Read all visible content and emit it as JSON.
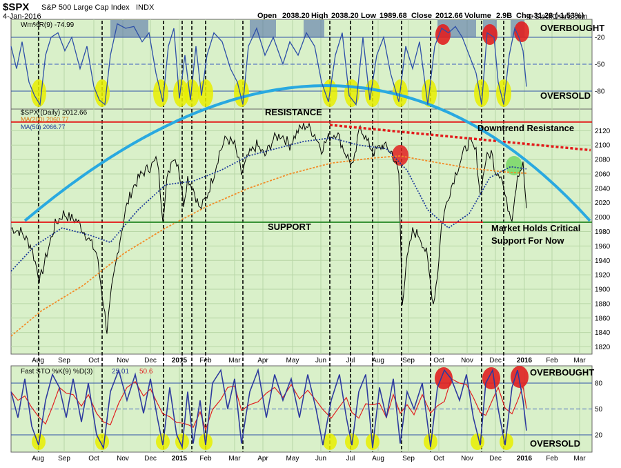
{
  "header": {
    "symbol": "$SPX",
    "name": "S&P 500 Large Cap Index",
    "exchange": "INDX",
    "date": "4-Jan-2016",
    "open_label": "Open",
    "open": "2038.20",
    "high_label": "High",
    "high": "2038.20",
    "low_label": "Low",
    "low": "1989.68",
    "close_label": "Close",
    "close": "2012.66",
    "volume_label": "Volume",
    "volume": "2.9B",
    "chg_label": "Chg",
    "chg": "-31.28 (-1.53%)",
    "watermark": "© StockCharts.com"
  },
  "colors": {
    "panel_bg": "#d9f0c9",
    "price": "#000000",
    "ma200": "#f28c28",
    "ma50": "#1f3c9b",
    "arc": "#29a9e0",
    "resistance": "#e31b1b",
    "support": "#2a8a2a",
    "highlight_yellow": "#e8ee00",
    "highlight_red": "#e02020",
    "willr": "#2d4fa8",
    "sto_k": "#2d3a9e",
    "sto_d": "#e02020"
  },
  "chart_data": [
    {
      "type": "line",
      "title": "Wm%R(9) -74.99",
      "ylim": [
        -100,
        0
      ],
      "y_ticks": [
        "-20",
        "-50",
        "-80"
      ],
      "y_tick_values": [
        -20,
        -50,
        -80
      ],
      "annotations": [
        "OVERBOUGHT",
        "OVERSOLD"
      ],
      "series": [
        {
          "name": "Wm%R(9)",
          "last": -74.99
        }
      ]
    },
    {
      "type": "line",
      "title": "$SPX (Daily) 2012.66",
      "ylim": [
        1810,
        2150
      ],
      "y_ticks": [
        "2120",
        "2100",
        "2080",
        "2060",
        "2040",
        "2020",
        "2000",
        "1980",
        "1960",
        "1940",
        "1920",
        "1900",
        "1880",
        "1860",
        "1840",
        "1820"
      ],
      "y_tick_values": [
        2120,
        2100,
        2080,
        2060,
        2040,
        2020,
        2000,
        1980,
        1960,
        1940,
        1920,
        1900,
        1880,
        1860,
        1840,
        1820
      ],
      "x_ticks": [
        "Aug",
        "Sep",
        "Oct",
        "Nov",
        "Dec",
        "2015",
        "Feb",
        "Mar",
        "Apr",
        "May",
        "Jun",
        "Jul",
        "Aug",
        "Sep",
        "Oct",
        "Nov",
        "Dec",
        "2016",
        "Feb",
        "Mar"
      ],
      "series": [
        {
          "name": "$SPX (Daily)",
          "last": 2012.66
        },
        {
          "name": "MA(200)",
          "last": 2060.77
        },
        {
          "name": "MA(50)",
          "last": 2066.77
        }
      ],
      "legend": [
        "MA(200) 2060.77",
        "MA(50) 2066.77"
      ],
      "annotations": {
        "resistance": "RESISTANCE",
        "support": "SUPPORT",
        "downtrend": "Downtrend Resistance",
        "note_line1": "Market Holds Critical",
        "note_line2": "Support For Now"
      },
      "resistance_level": 2132,
      "support_level": 1993
    },
    {
      "type": "line",
      "title": "Fast STO %K(9) %D(3)",
      "ylim": [
        0,
        100
      ],
      "y_ticks": [
        "80",
        "50",
        "20"
      ],
      "y_tick_values": [
        80,
        50,
        20
      ],
      "series": [
        {
          "name": "%K(9)",
          "last": 25.01
        },
        {
          "name": "%D(3)",
          "last": 50.6
        }
      ],
      "annotations": [
        "OVERBOUGHT",
        "OVERSOLD"
      ],
      "x_ticks": [
        "Aug",
        "Sep",
        "Oct",
        "Nov",
        "Dec",
        "2015",
        "Feb",
        "Mar",
        "Apr",
        "May",
        "Jun",
        "Jul",
        "Aug",
        "Sep",
        "Oct",
        "Nov",
        "Dec",
        "2016",
        "Feb",
        "Mar"
      ]
    }
  ]
}
